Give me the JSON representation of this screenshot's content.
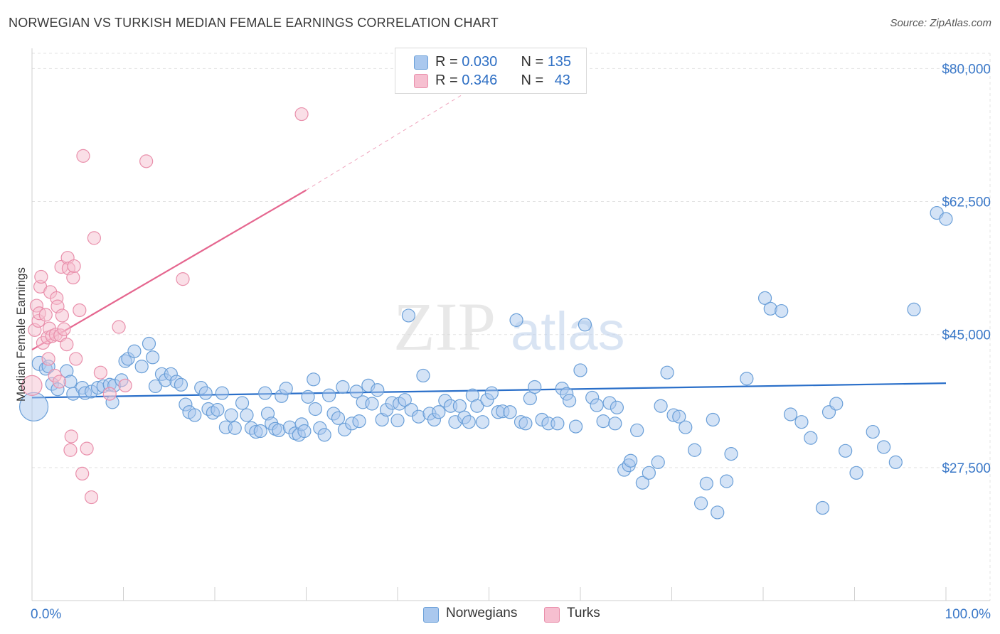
{
  "header": {
    "title": "NORWEGIAN VS TURKISH MEDIAN FEMALE EARNINGS CORRELATION CHART",
    "source": "Source: ZipAtlas.com"
  },
  "legend_top": {
    "rows": [
      {
        "r_label": "R = ",
        "r_value": "0.030",
        "n_label": "N = ",
        "n_value": "135"
      },
      {
        "r_label": "R = ",
        "r_value": "0.346",
        "n_label": "N = ",
        "n_value": "43"
      }
    ]
  },
  "legend_bottom": {
    "items": [
      {
        "label": "Norwegians"
      },
      {
        "label": "Turks"
      }
    ]
  },
  "watermark": {
    "zip": "ZIP",
    "atlas": "atlas"
  },
  "colors": {
    "blue_fill": "#aac8ee",
    "blue_stroke": "#6a9fd8",
    "blue_line": "#2a6fc9",
    "pink_fill": "#f6bfd0",
    "pink_stroke": "#e98fab",
    "pink_line": "#e5668f",
    "axis_text_blue": "#3a78c8",
    "grid": "#e3e3e3"
  },
  "chart_data": {
    "type": "scatter",
    "title": "NORWEGIAN VS TURKISH MEDIAN FEMALE EARNINGS CORRELATION CHART",
    "xlabel": "",
    "ylabel": "Median Female Earnings",
    "xlim": [
      0,
      100
    ],
    "ylim": [
      10000,
      82000
    ],
    "x_tick_labels": [
      "0.0%",
      "100.0%"
    ],
    "y_ticks": [
      {
        "value": 80000,
        "label": "$80,000"
      },
      {
        "value": 62500,
        "label": "$62,500"
      },
      {
        "value": 45000,
        "label": "$45,000"
      },
      {
        "value": 27500,
        "label": "$27,500"
      }
    ],
    "series": [
      {
        "name": "Norwegians",
        "R": 0.03,
        "N": 135,
        "trend": {
          "x": [
            0,
            100
          ],
          "y": [
            36700,
            38600
          ]
        },
        "points": [
          [
            0.2,
            35500
          ],
          [
            0.8,
            41200
          ],
          [
            1.5,
            40500
          ],
          [
            1.8,
            40800
          ],
          [
            2.2,
            38500
          ],
          [
            2.8,
            37800
          ],
          [
            3.8,
            40200
          ],
          [
            4.2,
            38800
          ],
          [
            4.5,
            37200
          ],
          [
            5.5,
            38000
          ],
          [
            5.8,
            37300
          ],
          [
            6.5,
            37500
          ],
          [
            7.2,
            38000
          ],
          [
            7.8,
            38200
          ],
          [
            8.5,
            38400
          ],
          [
            8.8,
            36100
          ],
          [
            9.0,
            38300
          ],
          [
            9.8,
            39000
          ],
          [
            10.2,
            41500
          ],
          [
            10.5,
            41800
          ],
          [
            11.2,
            42800
          ],
          [
            12.0,
            40800
          ],
          [
            12.8,
            43800
          ],
          [
            13.2,
            42000
          ],
          [
            13.5,
            38200
          ],
          [
            14.2,
            39800
          ],
          [
            14.6,
            39000
          ],
          [
            15.2,
            39800
          ],
          [
            15.8,
            38800
          ],
          [
            16.3,
            38400
          ],
          [
            16.8,
            35800
          ],
          [
            17.2,
            34800
          ],
          [
            17.8,
            34400
          ],
          [
            18.5,
            38000
          ],
          [
            19.0,
            37300
          ],
          [
            19.3,
            35200
          ],
          [
            19.8,
            34700
          ],
          [
            20.3,
            35100
          ],
          [
            20.8,
            37300
          ],
          [
            21.2,
            32800
          ],
          [
            21.8,
            34400
          ],
          [
            22.2,
            32700
          ],
          [
            23.0,
            36000
          ],
          [
            23.5,
            34400
          ],
          [
            24.0,
            32700
          ],
          [
            24.5,
            32200
          ],
          [
            25.0,
            32300
          ],
          [
            25.5,
            37300
          ],
          [
            25.8,
            34600
          ],
          [
            26.2,
            33300
          ],
          [
            26.6,
            32600
          ],
          [
            27.0,
            32400
          ],
          [
            27.3,
            36900
          ],
          [
            27.8,
            37900
          ],
          [
            28.2,
            32800
          ],
          [
            28.8,
            32000
          ],
          [
            29.2,
            31800
          ],
          [
            29.5,
            33200
          ],
          [
            29.8,
            32300
          ],
          [
            30.2,
            36800
          ],
          [
            30.8,
            39100
          ],
          [
            31.0,
            35200
          ],
          [
            31.5,
            32700
          ],
          [
            32.0,
            31800
          ],
          [
            32.5,
            37000
          ],
          [
            33.0,
            34600
          ],
          [
            33.5,
            34000
          ],
          [
            34.0,
            38100
          ],
          [
            34.2,
            32500
          ],
          [
            35.0,
            33300
          ],
          [
            35.5,
            37500
          ],
          [
            35.8,
            33600
          ],
          [
            36.2,
            36100
          ],
          [
            36.8,
            38300
          ],
          [
            37.2,
            35900
          ],
          [
            37.8,
            37700
          ],
          [
            38.3,
            33800
          ],
          [
            38.8,
            35100
          ],
          [
            39.4,
            36000
          ],
          [
            40.0,
            33700
          ],
          [
            40.2,
            35900
          ],
          [
            40.8,
            36400
          ],
          [
            41.2,
            47500
          ],
          [
            41.5,
            35100
          ],
          [
            42.3,
            34200
          ],
          [
            42.8,
            39600
          ],
          [
            43.5,
            34600
          ],
          [
            44.0,
            33800
          ],
          [
            44.5,
            34800
          ],
          [
            45.2,
            36300
          ],
          [
            45.8,
            35600
          ],
          [
            46.3,
            33500
          ],
          [
            46.8,
            35600
          ],
          [
            47.3,
            34100
          ],
          [
            47.8,
            33500
          ],
          [
            48.2,
            37000
          ],
          [
            48.7,
            35600
          ],
          [
            49.3,
            33500
          ],
          [
            49.8,
            36400
          ],
          [
            50.3,
            37300
          ],
          [
            51.0,
            34800
          ],
          [
            51.5,
            34900
          ],
          [
            52.3,
            34800
          ],
          [
            53.0,
            46900
          ],
          [
            53.5,
            33500
          ],
          [
            54.0,
            33300
          ],
          [
            54.5,
            36600
          ],
          [
            55.0,
            38100
          ],
          [
            55.8,
            33800
          ],
          [
            56.5,
            33300
          ],
          [
            57.5,
            33300
          ],
          [
            58.0,
            37900
          ],
          [
            58.5,
            37200
          ],
          [
            58.8,
            36300
          ],
          [
            59.5,
            32900
          ],
          [
            60.0,
            40300
          ],
          [
            60.5,
            46300
          ],
          [
            61.3,
            36700
          ],
          [
            61.8,
            35700
          ],
          [
            62.5,
            33600
          ],
          [
            63.2,
            36000
          ],
          [
            63.8,
            33300
          ],
          [
            64.0,
            35400
          ],
          [
            64.8,
            27200
          ],
          [
            65.3,
            27800
          ],
          [
            65.5,
            28400
          ],
          [
            66.2,
            32400
          ],
          [
            66.8,
            25500
          ],
          [
            67.5,
            26800
          ],
          [
            68.5,
            28200
          ],
          [
            68.8,
            35600
          ],
          [
            69.5,
            40000
          ],
          [
            70.2,
            34400
          ],
          [
            70.8,
            34200
          ],
          [
            71.5,
            32800
          ],
          [
            72.5,
            29800
          ],
          [
            73.2,
            22800
          ],
          [
            73.8,
            25400
          ],
          [
            74.5,
            33800
          ],
          [
            75.0,
            21600
          ],
          [
            76.0,
            25700
          ],
          [
            76.5,
            29300
          ],
          [
            78.2,
            39200
          ],
          [
            80.2,
            49800
          ],
          [
            80.8,
            48400
          ],
          [
            82.0,
            48100
          ],
          [
            83.0,
            34500
          ],
          [
            84.2,
            33500
          ],
          [
            85.2,
            31400
          ],
          [
            86.5,
            22200
          ],
          [
            87.2,
            34800
          ],
          [
            88.0,
            35900
          ],
          [
            89.0,
            29700
          ],
          [
            90.2,
            26800
          ],
          [
            92.0,
            32200
          ],
          [
            93.2,
            30200
          ],
          [
            94.5,
            28200
          ],
          [
            96.5,
            48300
          ],
          [
            99.0,
            61000
          ],
          [
            100.0,
            60200
          ]
        ]
      },
      {
        "name": "Turks",
        "R": 0.346,
        "N": 43,
        "trend": {
          "x": [
            0,
            30
          ],
          "y": [
            43000,
            64000
          ]
        },
        "trend_extension": {
          "x": [
            30,
            47
          ],
          "y": [
            64000,
            76500
          ]
        },
        "points": [
          [
            0.0,
            38300
          ],
          [
            0.3,
            45600
          ],
          [
            0.5,
            48800
          ],
          [
            0.7,
            46800
          ],
          [
            0.8,
            47800
          ],
          [
            0.9,
            51300
          ],
          [
            1.0,
            52600
          ],
          [
            1.2,
            43900
          ],
          [
            1.5,
            47600
          ],
          [
            1.7,
            44600
          ],
          [
            1.8,
            41800
          ],
          [
            1.9,
            45800
          ],
          [
            2.0,
            50600
          ],
          [
            2.2,
            44800
          ],
          [
            2.5,
            39600
          ],
          [
            2.6,
            45000
          ],
          [
            2.7,
            49800
          ],
          [
            2.8,
            48700
          ],
          [
            3.0,
            38800
          ],
          [
            3.1,
            44900
          ],
          [
            3.2,
            53900
          ],
          [
            3.3,
            47500
          ],
          [
            3.5,
            45700
          ],
          [
            3.8,
            43700
          ],
          [
            3.9,
            55100
          ],
          [
            4.0,
            53700
          ],
          [
            4.2,
            29800
          ],
          [
            4.3,
            31600
          ],
          [
            4.5,
            52500
          ],
          [
            4.6,
            54000
          ],
          [
            4.8,
            41800
          ],
          [
            5.2,
            48200
          ],
          [
            5.5,
            26700
          ],
          [
            5.6,
            68500
          ],
          [
            6.0,
            30000
          ],
          [
            6.5,
            23600
          ],
          [
            6.8,
            57700
          ],
          [
            7.5,
            40000
          ],
          [
            8.5,
            37200
          ],
          [
            9.5,
            46000
          ],
          [
            10.2,
            38300
          ],
          [
            12.5,
            67800
          ],
          [
            16.5,
            52300
          ],
          [
            29.5,
            74000
          ]
        ]
      }
    ]
  }
}
